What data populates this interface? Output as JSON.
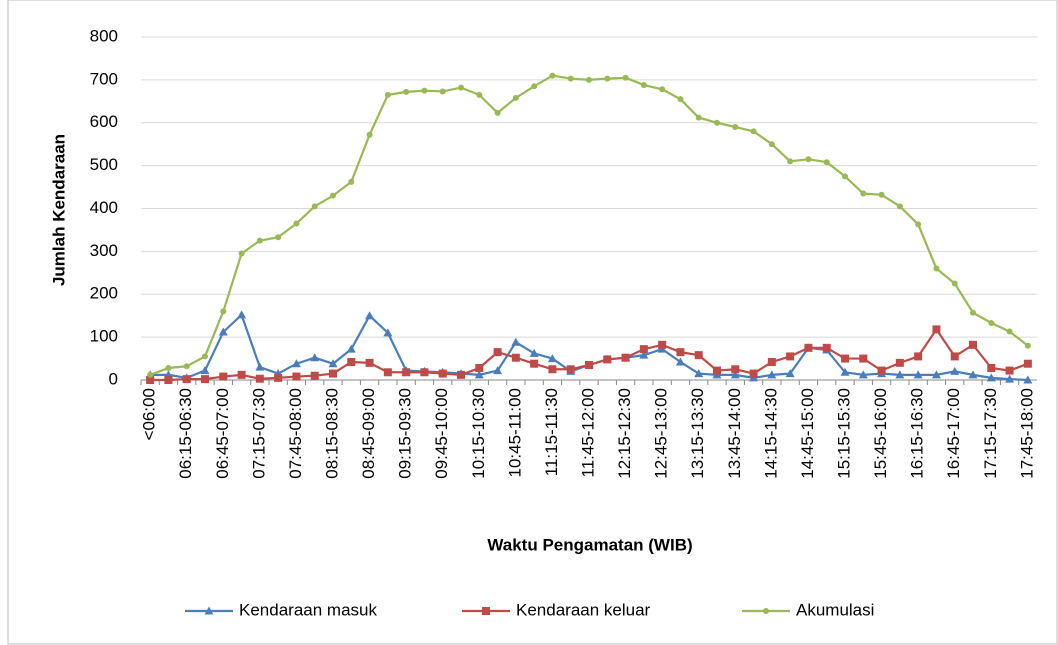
{
  "chart_data": {
    "type": "line",
    "y_label": "Jumlah Kendaraan",
    "x_label": "Waktu Pengamatan (WIB)",
    "categories": [
      "<06:00",
      null,
      "06:15-06:30",
      null,
      "06:45-07:00",
      null,
      "07:15-07:30",
      null,
      "07:45-08:00",
      null,
      "08:15-08:30",
      null,
      "08:45-09:00",
      null,
      "09:15-09:30",
      null,
      "09:45-10:00",
      null,
      "10:15-10:30",
      null,
      "10:45-11:00",
      null,
      "11:15-11:30",
      null,
      "11:45-12:00",
      null,
      "12:15-12:30",
      null,
      "12:45-13:00",
      null,
      "13:15-13:30",
      null,
      "13:45-14:00",
      null,
      "14:15-14:30",
      null,
      "14:45-15:00",
      null,
      "15:15-15:30",
      null,
      "15:45-16:00",
      null,
      "16:15-16:30",
      null,
      "16:45-17:00",
      null,
      "17:15-17:30",
      null,
      "17:45-18:00"
    ],
    "series": [
      {
        "name": "Kendaraan masuk",
        "color": "#4a7ebb",
        "marker": "triangle",
        "values": [
          12,
          12,
          5,
          22,
          112,
          152,
          30,
          15,
          38,
          52,
          38,
          72,
          150,
          110,
          22,
          20,
          18,
          15,
          12,
          22,
          88,
          62,
          50,
          20,
          35,
          48,
          52,
          58,
          72,
          42,
          15,
          12,
          12,
          5,
          12,
          15,
          75,
          70,
          18,
          12,
          15,
          12,
          12,
          12,
          20,
          12,
          5,
          2,
          0
        ]
      },
      {
        "name": "Kendaraan keluar",
        "color": "#be4b48",
        "marker": "square",
        "values": [
          0,
          0,
          2,
          2,
          8,
          12,
          3,
          5,
          8,
          10,
          15,
          42,
          40,
          18,
          18,
          18,
          15,
          12,
          28,
          65,
          52,
          38,
          25,
          25,
          35,
          48,
          52,
          72,
          82,
          65,
          58,
          22,
          25,
          15,
          42,
          55,
          75,
          75,
          50,
          50,
          22,
          40,
          55,
          118,
          55,
          82,
          28,
          22,
          38
        ]
      },
      {
        "name": "Akumulasi",
        "color": "#98b954",
        "marker": "circle",
        "values": [
          12,
          28,
          32,
          55,
          160,
          295,
          325,
          333,
          365,
          405,
          430,
          462,
          572,
          665,
          672,
          675,
          673,
          682,
          665,
          623,
          658,
          685,
          710,
          703,
          700,
          703,
          705,
          688,
          678,
          655,
          612,
          600,
          590,
          580,
          550,
          510,
          515,
          508,
          475,
          435,
          432,
          405,
          363,
          260,
          225,
          157,
          133,
          113,
          80
        ]
      }
    ],
    "ylim": [
      0,
      800
    ],
    "yticks": [
      0,
      100,
      200,
      300,
      400,
      500,
      600,
      700,
      800
    ],
    "grid": true,
    "legend": "bottom"
  }
}
